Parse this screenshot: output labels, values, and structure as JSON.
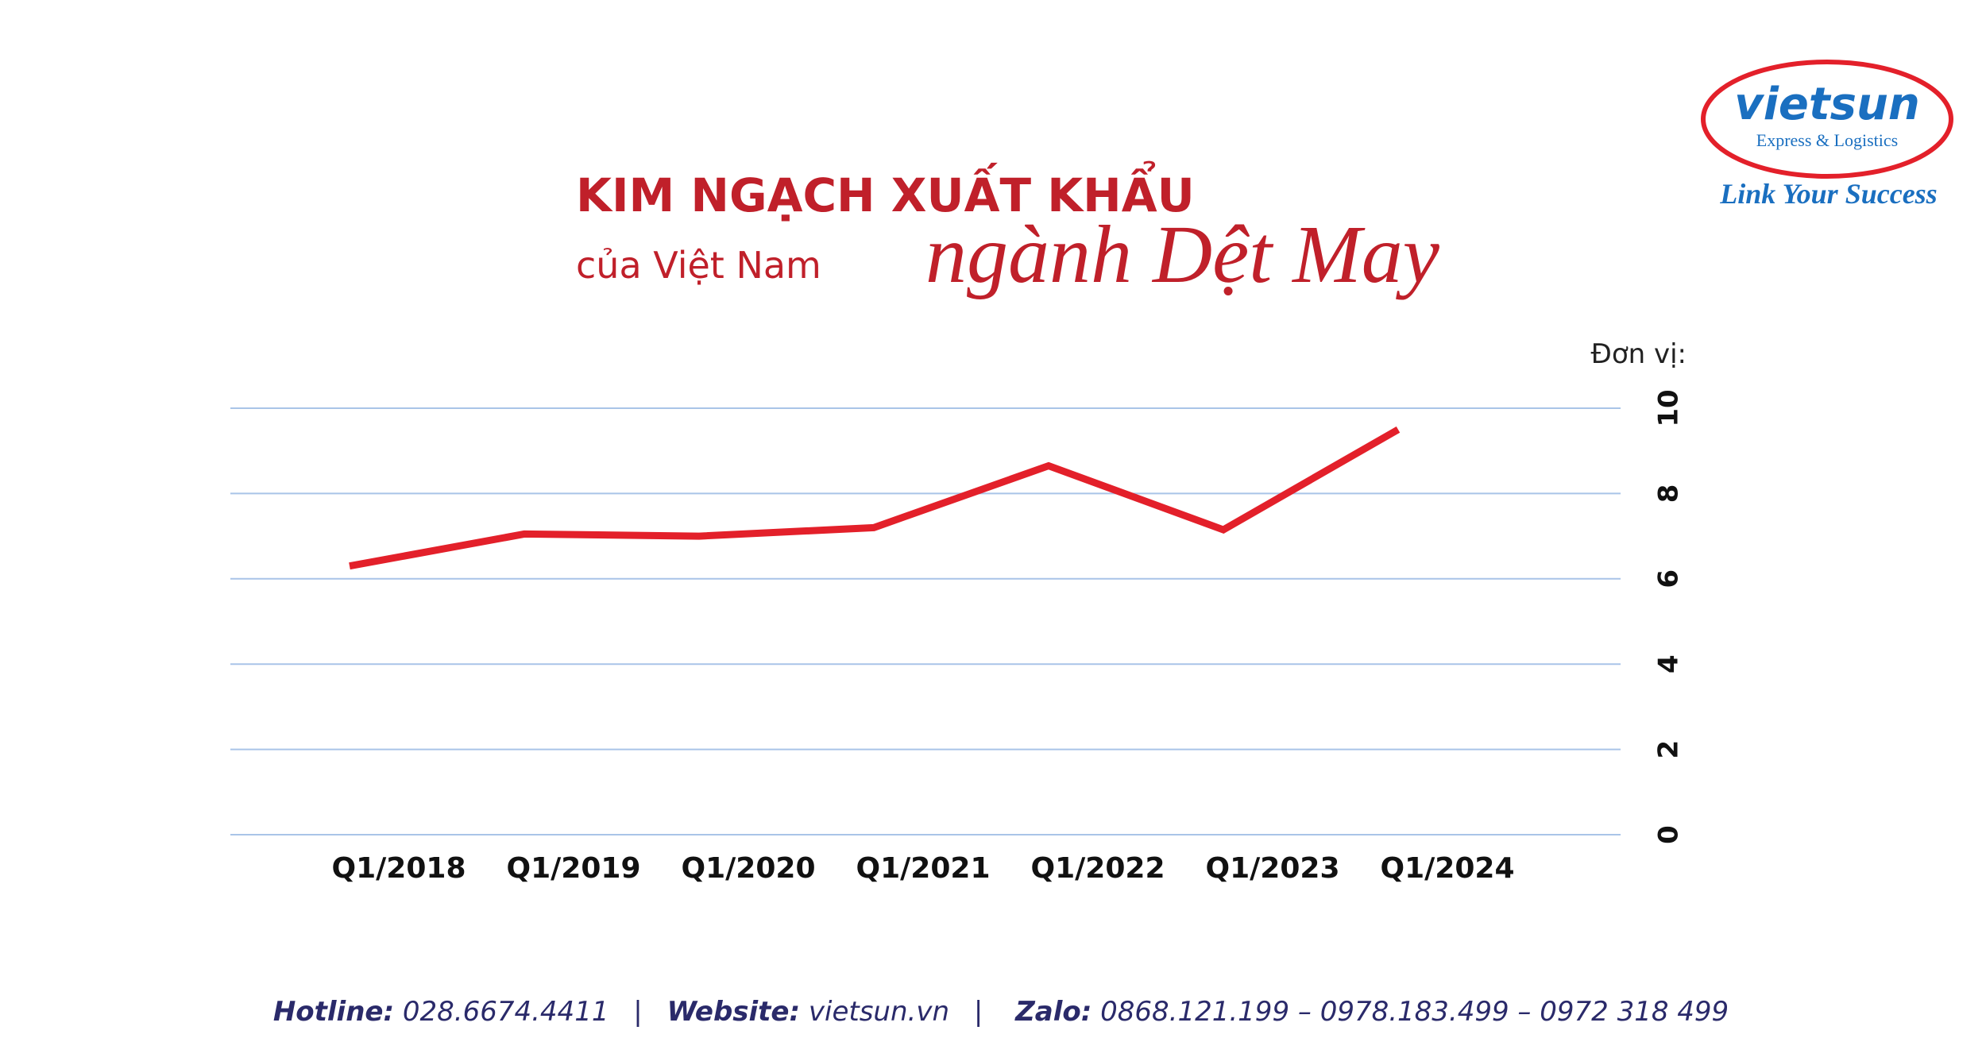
{
  "logo": {
    "brand": "vietsun",
    "tagline": "Express & Logistics",
    "slogan": "Link Your Success"
  },
  "chart_data": {
    "type": "line",
    "title": "KIM NGẠCH XUẤT KHẨU",
    "subtitle": [
      "của Việt Nam",
      "ngành Dệt May"
    ],
    "y_label": "Đơn vị:",
    "categories": [
      "Q1/2018",
      "Q1/2019",
      "Q1/2020",
      "Q1/2021",
      "Q1/2022",
      "Q1/2023",
      "Q1/2024"
    ],
    "series": [
      {
        "color": "#e3202a",
        "values": [
          6.3,
          7.05,
          7.0,
          7.2,
          8.65,
          7.15,
          9.5
        ]
      }
    ],
    "ylim": [
      0,
      10
    ],
    "yticks": [
      0,
      2,
      4,
      6,
      8,
      10
    ],
    "grid": true,
    "y_axis_side": "right"
  },
  "footer": {
    "hotline_label": "Hotline:",
    "hotline": "028.6674.4411",
    "separator": "|",
    "website_label": "Website:",
    "website": "vietsun.vn",
    "zalo_label": "Zalo:",
    "zalo": "0868.121.199 – 0978.183.499 – 0972 318 499"
  }
}
